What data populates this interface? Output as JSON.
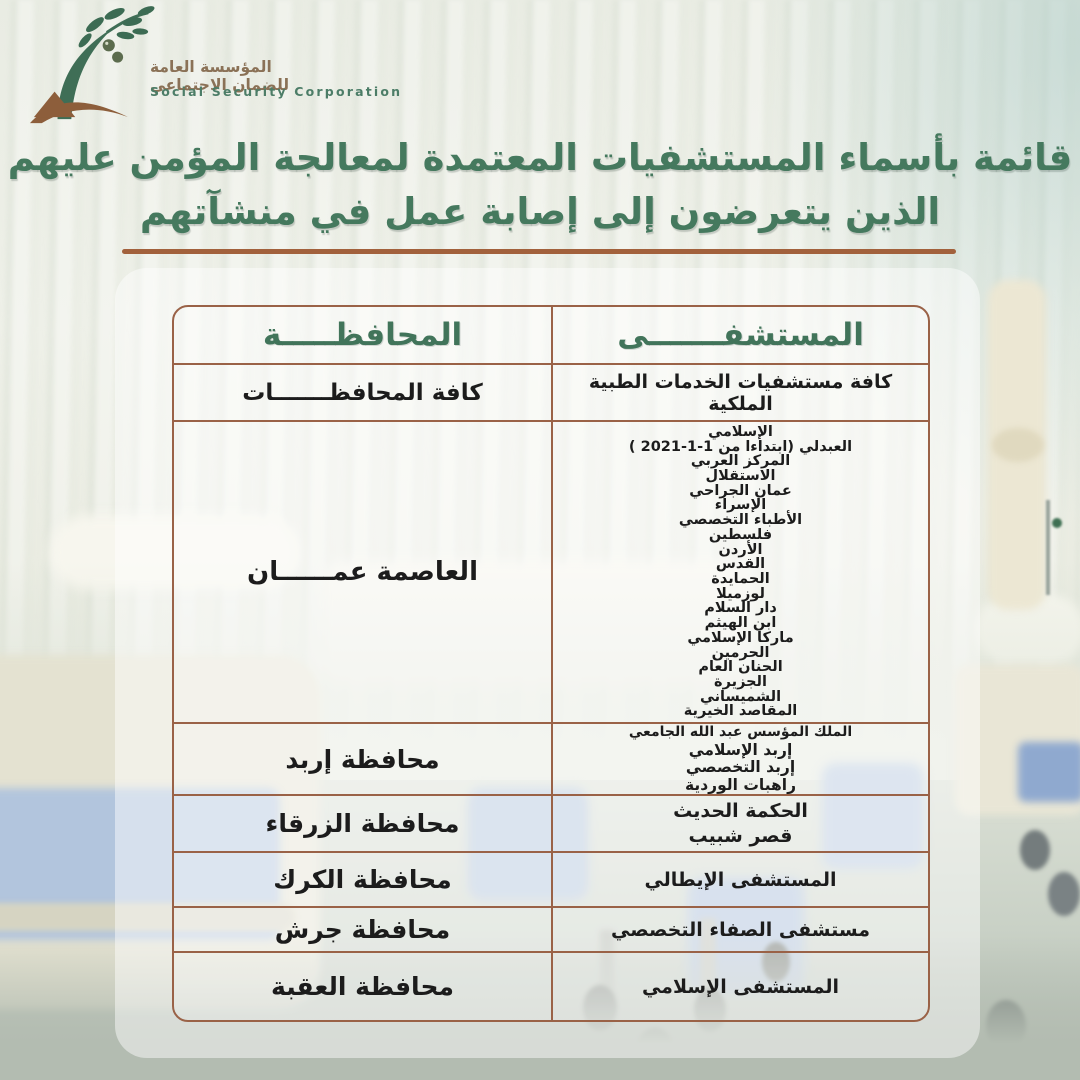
{
  "logo": {
    "title_ar": "المؤسسة العامة للضمان الاجتماعي",
    "title_en": "Social Security Corporation"
  },
  "header": {
    "title_line1": "قائمة بأسماء المستشفيات المعتمدة لمعالجة المؤمن عليهم",
    "title_line2": "الذين يتعرضون إلى إصابة عمل في منشآتهم"
  },
  "table": {
    "columns": {
      "hospital": "المستشفـــــــى",
      "governorate": "المحافظـــــة"
    },
    "rows": [
      {
        "governorate": "كافة المحافظـــــــات",
        "hospitals": [
          "كافة مستشفيات الخدمات الطبية الملكية"
        ]
      },
      {
        "governorate": "العاصمة عمــــــان",
        "hospitals": [
          "الإسلامي",
          "العبدلي  (ابتداءا من 1-1-2021 )",
          "المركز العربي",
          "الاستقلال",
          "عمان الجراحي",
          "الإسراء",
          "الأطباء التخصصي",
          "فلسطين",
          "الأردن",
          "القدس",
          "الحمايدة",
          "لوزميلا",
          "دار السلام",
          "ابن الهيثم",
          "ماركا الإسلامي",
          "الحرمين",
          "الحنان العام",
          "الجزيرة",
          "الشميساني",
          "المقاصد الخيرية"
        ]
      },
      {
        "governorate": "محافظة إربد",
        "hospitals": [
          "الملك المؤسس عبد الله الجامعي",
          "إربد الإسلامي",
          "إربد التخصصي",
          "راهبات الوردية"
        ]
      },
      {
        "governorate": "محافظة الزرقاء",
        "hospitals": [
          "الحكمة الحديث",
          "قصر شبيب"
        ]
      },
      {
        "governorate": "محافظة الكرك",
        "hospitals": [
          "المستشفى الإيطالي"
        ]
      },
      {
        "governorate": "محافظة جرش",
        "hospitals": [
          "مستشفى الصفاء التخصصي"
        ]
      },
      {
        "governorate": "محافظة العقبة",
        "hospitals": [
          "المستشفى الإسلامي"
        ]
      }
    ]
  },
  "colors": {
    "title_green": "#45795e",
    "table_border_brown": "#9a6247",
    "divider_brown": "#a2613c",
    "text_dark": "#1c1c1c",
    "logo_arabic_brown": "#8a7156",
    "logo_english_green": "#4c7d67",
    "logo_leaf_green": "#3c6b53",
    "logo_root_brown": "#8d5e3b"
  }
}
